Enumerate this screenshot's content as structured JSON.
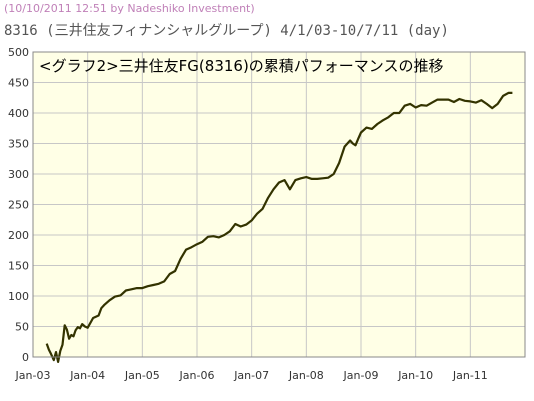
{
  "header": {
    "watermark": "(10/10/2011 12:51 by Nadeshiko Investment)",
    "title": "8316 (三井住友フィナンシャルグループ)  4/1/03-10/7/11 (day)"
  },
  "colors": {
    "background": "#ffffff",
    "plot_background": "#ffffe6",
    "grid": "#c7c7c7",
    "line": "#333300",
    "watermark": "#c080b8"
  },
  "chart_data": {
    "type": "line",
    "title": "<グラフ2>三井住友FG(8316)の累積パフォーマンスの推移",
    "xlabel": "",
    "ylabel": "",
    "ylim": [
      0,
      500
    ],
    "yticks": [
      0,
      50,
      100,
      150,
      200,
      250,
      300,
      350,
      400,
      450,
      500
    ],
    "xlim": [
      2003.0,
      2012.0
    ],
    "xticks": [
      {
        "x": 2003.0,
        "label": "Jan-03"
      },
      {
        "x": 2004.0,
        "label": "Jan-04"
      },
      {
        "x": 2005.0,
        "label": "Jan-05"
      },
      {
        "x": 2006.0,
        "label": "Jan-06"
      },
      {
        "x": 2007.0,
        "label": "Jan-07"
      },
      {
        "x": 2008.0,
        "label": "Jan-08"
      },
      {
        "x": 2009.0,
        "label": "Jan-09"
      },
      {
        "x": 2010.0,
        "label": "Jan-10"
      },
      {
        "x": 2011.0,
        "label": "Jan-11"
      }
    ],
    "grid": true,
    "series": [
      {
        "x": [
          2003.25,
          2003.29,
          2003.33,
          2003.38,
          2003.42,
          2003.46,
          2003.5,
          2003.54,
          2003.58,
          2003.62,
          2003.66,
          2003.7,
          2003.74,
          2003.78,
          2003.82,
          2003.86,
          2003.9,
          2003.95,
          2004.0,
          2004.1,
          2004.2,
          2004.25,
          2004.3,
          2004.4,
          2004.5,
          2004.6,
          2004.7,
          2004.8,
          2004.9,
          2005.0,
          2005.1,
          2005.2,
          2005.3,
          2005.4,
          2005.5,
          2005.6,
          2005.7,
          2005.8,
          2005.9,
          2006.0,
          2006.1,
          2006.2,
          2006.3,
          2006.4,
          2006.5,
          2006.6,
          2006.7,
          2006.8,
          2006.9,
          2007.0,
          2007.1,
          2007.2,
          2007.3,
          2007.4,
          2007.5,
          2007.6,
          2007.7,
          2007.8,
          2007.9,
          2008.0,
          2008.1,
          2008.2,
          2008.3,
          2008.4,
          2008.5,
          2008.6,
          2008.7,
          2008.8,
          2008.85,
          2008.9,
          2008.95,
          2009.0,
          2009.1,
          2009.2,
          2009.3,
          2009.4,
          2009.5,
          2009.6,
          2009.7,
          2009.8,
          2009.9,
          2010.0,
          2010.1,
          2010.2,
          2010.3,
          2010.4,
          2010.5,
          2010.6,
          2010.7,
          2010.8,
          2010.9,
          2011.0,
          2011.1,
          2011.2,
          2011.3,
          2011.4,
          2011.5,
          2011.6,
          2011.7,
          2011.77
        ],
        "values": [
          22,
          12,
          5,
          -5,
          8,
          -8,
          10,
          20,
          52,
          45,
          30,
          36,
          34,
          44,
          49,
          47,
          54,
          50,
          48,
          64,
          68,
          80,
          85,
          93,
          99,
          101,
          109,
          111,
          113,
          113,
          116,
          118,
          120,
          124,
          136,
          141,
          161,
          176,
          180,
          185,
          189,
          197,
          198,
          196,
          200,
          206,
          218,
          214,
          217,
          224,
          235,
          243,
          261,
          275,
          286,
          290,
          275,
          290,
          293,
          295,
          292,
          292,
          293,
          294,
          300,
          318,
          345,
          355,
          350,
          347,
          358,
          368,
          376,
          374,
          382,
          388,
          393,
          400,
          400,
          412,
          415,
          409,
          413,
          412,
          417,
          422,
          422,
          422,
          418,
          423,
          420,
          419,
          417,
          421,
          415,
          408,
          415,
          428,
          433,
          433
        ]
      }
    ]
  }
}
